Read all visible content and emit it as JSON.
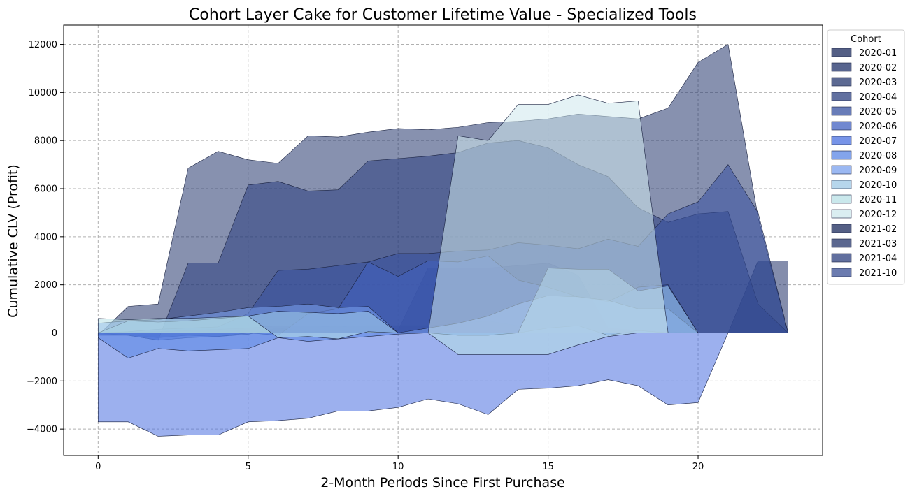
{
  "chart_data": {
    "type": "area",
    "title": "Cohort Layer Cake for Customer Lifetime Value - Specialized Tools",
    "xlabel": "2-Month Periods Since First Purchase",
    "ylabel": "Cumulative CLV (Profit)",
    "xlim": [
      -1.15,
      24.15
    ],
    "ylim": [
      -5100,
      12800
    ],
    "xticks": [
      0,
      5,
      10,
      15,
      20
    ],
    "yticks": [
      -4000,
      -2000,
      0,
      2000,
      4000,
      6000,
      8000,
      10000,
      12000
    ],
    "grid": true,
    "legend": {
      "title": "Cohort",
      "placement": "upper-right-outside"
    },
    "series": [
      {
        "name": "2020-01",
        "color": "#1b2a5c",
        "x": [
          0,
          1,
          2,
          3,
          4,
          5,
          6,
          7,
          8,
          9,
          10,
          11,
          12,
          13,
          14,
          15,
          16,
          17,
          18,
          19,
          20,
          21,
          22,
          23
        ],
        "y": [
          -50,
          -80,
          -200,
          -100,
          -150,
          -60,
          200,
          50,
          100,
          0,
          100,
          2700,
          2700,
          2700,
          2800,
          2900,
          2400,
          200,
          100,
          50,
          0,
          0,
          0,
          0
        ]
      },
      {
        "name": "2020-02",
        "color": "#1f3068",
        "x": [
          0,
          1,
          2,
          3,
          4,
          5,
          6,
          7,
          8,
          9,
          10,
          11,
          12,
          13,
          14,
          15,
          16,
          17,
          18,
          19,
          20,
          21,
          22,
          23
        ],
        "y": [
          0,
          20,
          50,
          100,
          150,
          200,
          300,
          280,
          260,
          300,
          300,
          300,
          400,
          500,
          300,
          100,
          600,
          50,
          0,
          0,
          0,
          0,
          3000,
          3000
        ]
      },
      {
        "name": "2020-03",
        "color": "#25376e",
        "x": [
          0,
          1,
          2,
          3,
          4,
          5,
          6,
          7,
          8,
          9,
          10,
          11,
          12,
          13,
          14,
          15,
          16,
          17,
          18,
          19,
          20,
          21,
          22,
          23
        ],
        "y": [
          -100,
          1100,
          1200,
          6850,
          7550,
          7200,
          7050,
          8200,
          8150,
          8350,
          8500,
          8450,
          8550,
          8750,
          8800,
          8900,
          9100,
          9000,
          8900,
          9350,
          11250,
          12000,
          4800,
          0
        ]
      },
      {
        "name": "2020-04",
        "color": "#2c4080",
        "x": [
          0,
          1,
          2,
          3,
          4,
          5,
          6,
          7,
          8,
          9,
          10,
          11,
          12,
          13,
          14,
          15,
          16,
          17,
          18,
          19,
          20,
          21,
          22,
          23
        ],
        "y": [
          0,
          -100,
          -300,
          2900,
          2900,
          6150,
          6300,
          5900,
          5950,
          7150,
          7250,
          7350,
          7500,
          7900,
          8000,
          7700,
          7000,
          6500,
          5200,
          4600,
          4950,
          5050,
          1200,
          0
        ]
      },
      {
        "name": "2020-05",
        "color": "#3650a0",
        "x": [
          0,
          1,
          2,
          3,
          4,
          5,
          6,
          7,
          8,
          9,
          10,
          11,
          12,
          13,
          14,
          15,
          16,
          17,
          18,
          19,
          20,
          21,
          22,
          23
        ],
        "y": [
          0,
          50,
          150,
          200,
          250,
          800,
          2600,
          2650,
          2800,
          2950,
          3300,
          3300,
          3400,
          3450,
          3750,
          3650,
          3500,
          3900,
          3600,
          4950,
          5450,
          7000,
          5000,
          0
        ]
      },
      {
        "name": "2020-06",
        "color": "#4160c0",
        "x": [
          0,
          1,
          2,
          3,
          4,
          5,
          6,
          7,
          8,
          9,
          10,
          11,
          12,
          13,
          14,
          15,
          16,
          17,
          18,
          19,
          20,
          21,
          22,
          23
        ],
        "y": [
          -100,
          -100,
          -300,
          -200,
          -150,
          0,
          -100,
          800,
          1000,
          2950,
          2350,
          3000,
          2950,
          3200,
          2200,
          1900,
          1500,
          1300,
          1900,
          2000,
          0,
          0,
          0,
          0
        ]
      },
      {
        "name": "2020-07",
        "color": "#4a70e0",
        "x": [
          0,
          1,
          2,
          3,
          4,
          5,
          6,
          7,
          8,
          9,
          10,
          11,
          12,
          13,
          14,
          15,
          16,
          17,
          18,
          19,
          20,
          21,
          22,
          23
        ],
        "y": [
          -3700,
          -3700,
          -4300,
          -4250,
          -4250,
          -3700,
          -3650,
          -3550,
          -3250,
          -3250,
          -3100,
          -2750,
          -2950,
          -3400,
          -2350,
          -2300,
          -2200,
          -1950,
          -2200,
          -3000,
          -2900,
          0,
          0,
          0
        ]
      },
      {
        "name": "2020-08",
        "color": "#5a86e6",
        "x": [
          0,
          1,
          2,
          3,
          4,
          5,
          6,
          7,
          8,
          9,
          10,
          11,
          12,
          13,
          14,
          15,
          16,
          17,
          18,
          19,
          20,
          21,
          22,
          23
        ],
        "y": [
          -200,
          -1050,
          -650,
          -750,
          -700,
          -650,
          -200,
          -350,
          -250,
          -150,
          -50,
          0,
          -100,
          -100,
          0,
          200,
          300,
          -100,
          100,
          0,
          0,
          0,
          0,
          0
        ]
      },
      {
        "name": "2020-09",
        "color": "#7aa0ee",
        "x": [
          0,
          1,
          2,
          3,
          4,
          5,
          6,
          7,
          8,
          9,
          10,
          11,
          12,
          13,
          14,
          15,
          16,
          17,
          18,
          19,
          20,
          21,
          22,
          23
        ],
        "y": [
          400,
          500,
          550,
          700,
          850,
          1050,
          1100,
          1200,
          1050,
          1100,
          0,
          200,
          400,
          700,
          1200,
          1550,
          1500,
          1350,
          1000,
          1000,
          0,
          0,
          0,
          0
        ]
      },
      {
        "name": "2020-10",
        "color": "#9ec8e6",
        "x": [
          0,
          1,
          2,
          3,
          4,
          5,
          6,
          7,
          8,
          9,
          10,
          11,
          12,
          13,
          14,
          15,
          16,
          17,
          18,
          19,
          20,
          21,
          22,
          23
        ],
        "y": [
          0,
          500,
          450,
          500,
          600,
          700,
          900,
          850,
          800,
          900,
          0,
          0,
          0,
          0,
          0,
          2700,
          2650,
          2650,
          1750,
          1950,
          0,
          0,
          0,
          0
        ]
      },
      {
        "name": "2020-11",
        "color": "#b8e0e6",
        "x": [
          0,
          1,
          2,
          3,
          4,
          5,
          6,
          7,
          8,
          9,
          10,
          11,
          12,
          13,
          14,
          15,
          16,
          17,
          18,
          19,
          20,
          21,
          22,
          23
        ],
        "y": [
          600,
          550,
          600,
          600,
          650,
          700,
          -200,
          -150,
          -250,
          50,
          0,
          0,
          -900,
          -900,
          -900,
          -900,
          -500,
          -150,
          0,
          0,
          0,
          0,
          0,
          0
        ]
      },
      {
        "name": "2020-12",
        "color": "#cde8ec",
        "x": [
          0,
          1,
          2,
          3,
          4,
          5,
          6,
          7,
          8,
          9,
          10,
          11,
          12,
          13,
          14,
          15,
          16,
          17,
          18,
          19,
          20,
          21,
          22,
          23
        ],
        "y": [
          0,
          0,
          0,
          0,
          0,
          0,
          0,
          0,
          0,
          0,
          0,
          0,
          8200,
          8000,
          9500,
          9500,
          9900,
          9550,
          9650,
          0,
          0,
          0,
          0,
          0
        ]
      },
      {
        "name": "2021-02",
        "color": "#1b2a5c",
        "x": [
          0,
          1,
          2,
          3,
          4,
          5,
          6,
          7,
          8,
          9,
          10,
          11,
          12,
          13,
          14,
          15,
          16,
          17,
          18,
          19,
          20,
          21,
          22,
          23
        ],
        "y": [
          0,
          0,
          0,
          0,
          0,
          0,
          0,
          0,
          0,
          0,
          0,
          0,
          0,
          0,
          0,
          0,
          0,
          0,
          0,
          0,
          0,
          0,
          0,
          0
        ]
      },
      {
        "name": "2021-03",
        "color": "#24346a",
        "x": [
          0,
          1,
          2,
          3,
          4,
          5,
          6,
          7,
          8,
          9,
          10,
          11,
          12,
          13,
          14,
          15,
          16,
          17,
          18,
          19,
          20,
          21,
          22,
          23
        ],
        "y": [
          0,
          0,
          0,
          0,
          0,
          0,
          0,
          0,
          0,
          0,
          0,
          0,
          0,
          0,
          0,
          0,
          0,
          0,
          0,
          0,
          0,
          0,
          0,
          0
        ]
      },
      {
        "name": "2021-04",
        "color": "#2c3f7e",
        "x": [
          0,
          1,
          2,
          3,
          4,
          5,
          6,
          7,
          8,
          9,
          10,
          11,
          12,
          13,
          14,
          15,
          16,
          17,
          18,
          19,
          20,
          21,
          22,
          23
        ],
        "y": [
          0,
          0,
          0,
          0,
          0,
          0,
          0,
          0,
          0,
          0,
          0,
          0,
          0,
          0,
          0,
          0,
          0,
          0,
          0,
          0,
          0,
          0,
          0,
          0
        ]
      },
      {
        "name": "2021-10",
        "color": "#3a4f94",
        "x": [
          0,
          1,
          2,
          3,
          4,
          5,
          6,
          7,
          8,
          9,
          10,
          11,
          12,
          13,
          14,
          15,
          16,
          17,
          18,
          19,
          20,
          21,
          22,
          23
        ],
        "y": [
          0,
          0,
          0,
          0,
          0,
          0,
          0,
          0,
          0,
          0,
          0,
          0,
          0,
          0,
          0,
          0,
          0,
          0,
          0,
          0,
          0,
          0,
          0,
          0
        ]
      }
    ]
  }
}
